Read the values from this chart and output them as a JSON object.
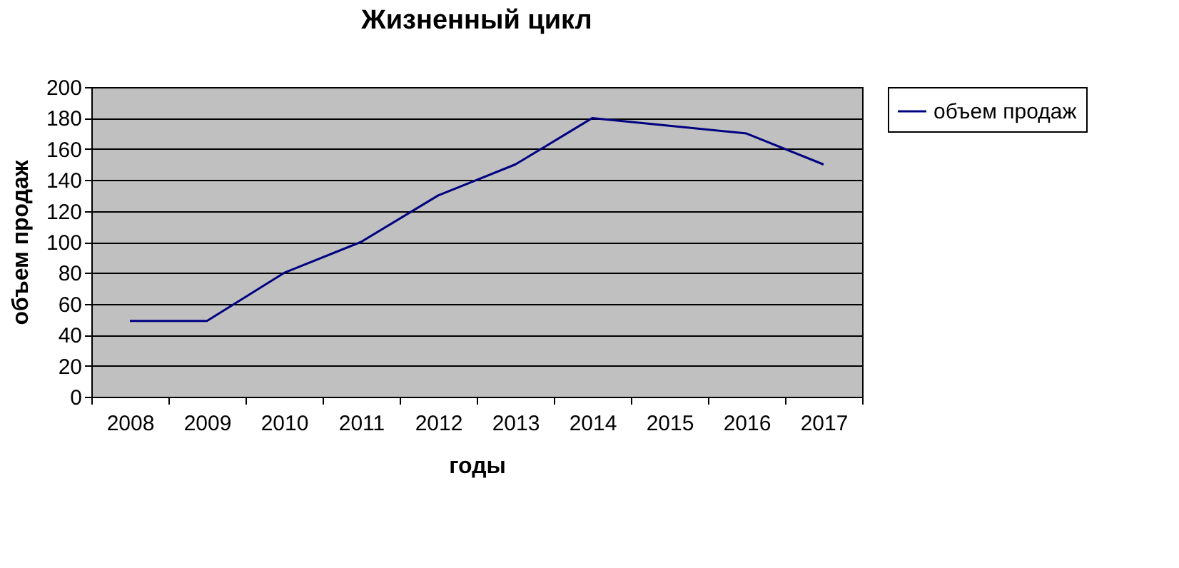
{
  "chart_data": {
    "type": "line",
    "title": "Жизненный цикл",
    "xlabel": "годы",
    "ylabel": "объем продаж",
    "categories": [
      "2008",
      "2009",
      "2010",
      "2011",
      "2012",
      "2013",
      "2014",
      "2015",
      "2016",
      "2017"
    ],
    "series": [
      {
        "name": "объем продаж",
        "color": "#000080",
        "values": [
          49,
          49,
          80,
          100,
          130,
          150,
          180,
          175,
          170,
          150
        ]
      }
    ],
    "ylim": [
      0,
      200
    ],
    "yticks": [
      0,
      20,
      40,
      60,
      80,
      100,
      120,
      140,
      160,
      180,
      200
    ],
    "grid": "y",
    "legend": "right",
    "marker": "none",
    "line_style": "solid"
  }
}
